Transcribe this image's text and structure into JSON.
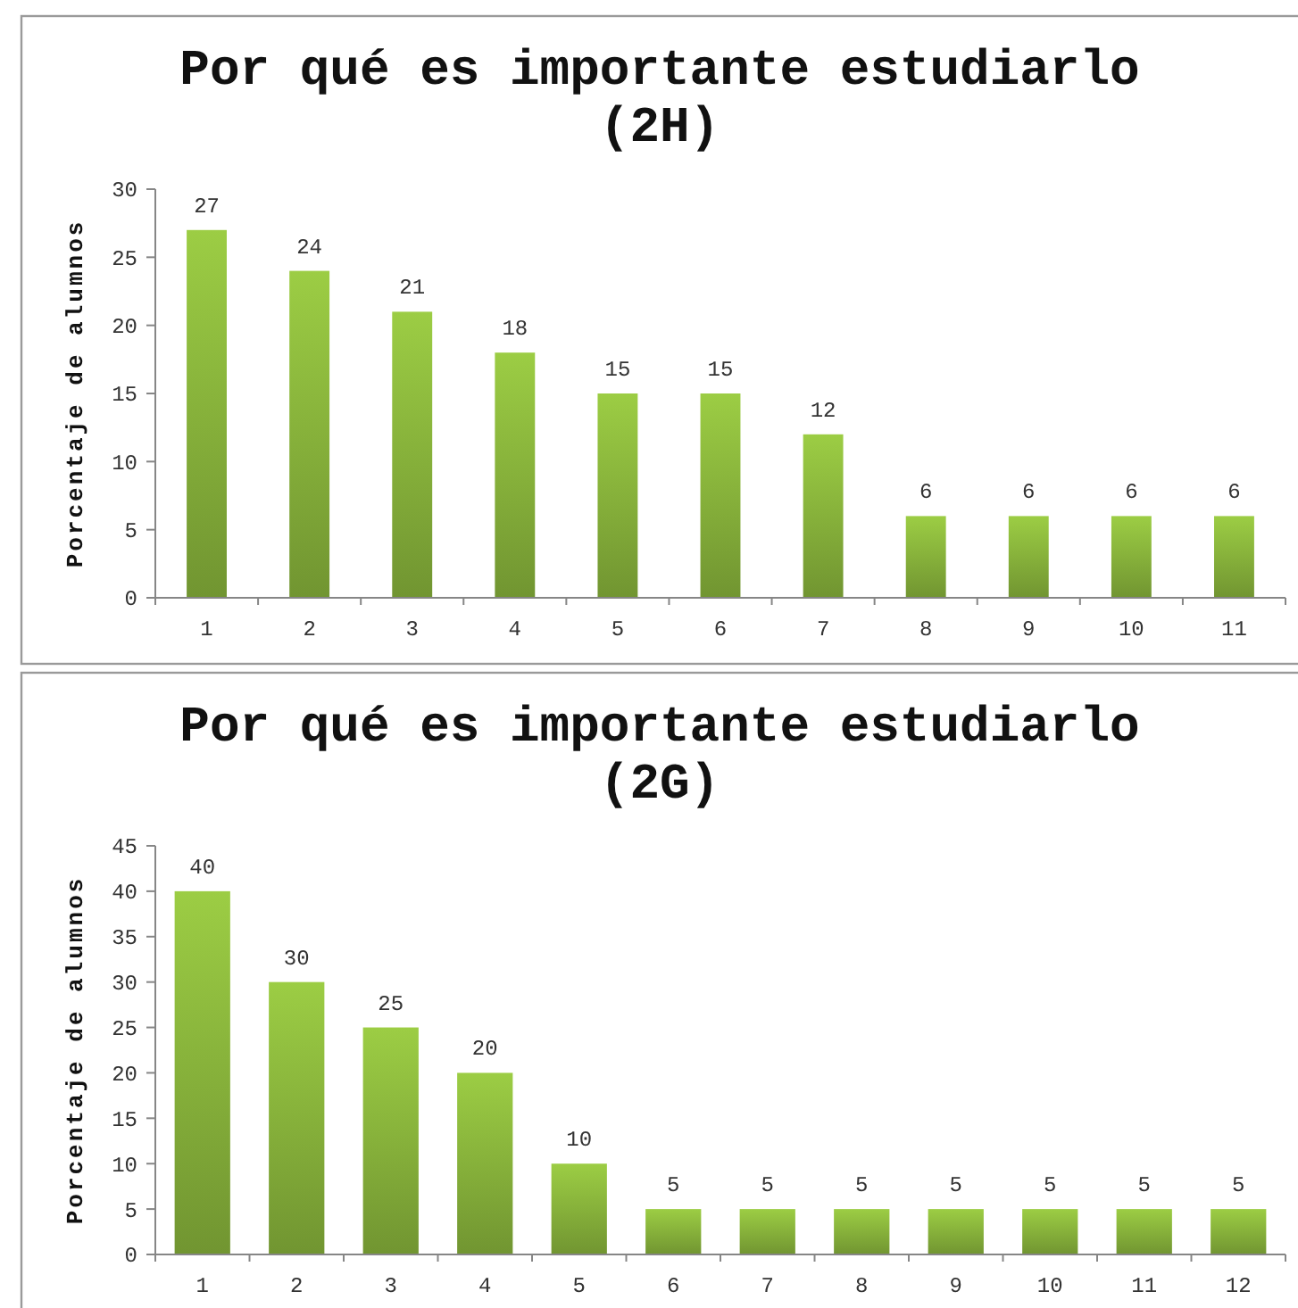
{
  "chart_data": [
    {
      "type": "bar",
      "title": "Por qué es importante estudiarlo\n(2H)",
      "ylabel": "Porcentaje de alumnos",
      "categories": [
        "1",
        "2",
        "3",
        "4",
        "5",
        "6",
        "7",
        "8",
        "9",
        "10",
        "11"
      ],
      "values": [
        27,
        24,
        21,
        18,
        15,
        15,
        12,
        6,
        6,
        6,
        6
      ],
      "color": "#8ab53c",
      "ylim": [
        0,
        30
      ],
      "yticks": [
        0,
        5,
        10,
        15,
        20,
        25,
        30
      ],
      "data_labels": true
    },
    {
      "type": "bar",
      "title": "Por qué es importante estudiarlo\n(2G)",
      "ylabel": "Porcentaje de alumnos",
      "categories": [
        "1",
        "2",
        "3",
        "4",
        "5",
        "6",
        "7",
        "8",
        "9",
        "10",
        "11",
        "12"
      ],
      "values": [
        40,
        30,
        25,
        20,
        10,
        5,
        5,
        5,
        5,
        5,
        5,
        5
      ],
      "color": "#8ab53c",
      "ylim": [
        0,
        45
      ],
      "yticks": [
        0,
        5,
        10,
        15,
        20,
        25,
        30,
        35,
        40,
        45
      ],
      "data_labels": true
    }
  ]
}
